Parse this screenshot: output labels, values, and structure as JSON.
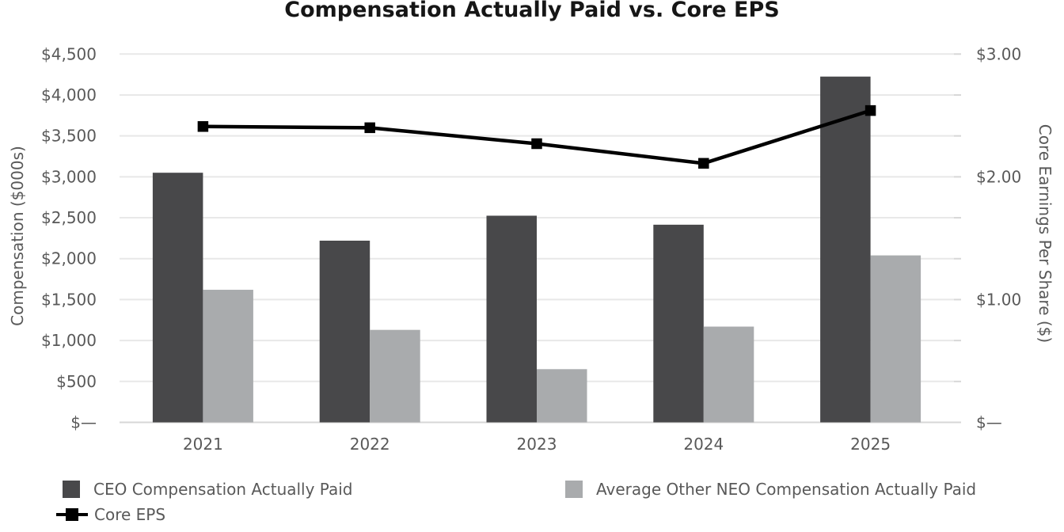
{
  "title": "Compensation Actually Paid vs. Core EPS",
  "colors": {
    "ceo_bar": "#48484a",
    "neo_bar": "#a9abad",
    "eps_line": "#000000",
    "axis_text": "#595959",
    "title_text": "#161616",
    "gridline": "#e8e8e8",
    "baseline": "#d7d7d7"
  },
  "chart_data": {
    "type": "bar",
    "subtype": "grouped bars with overlaid line on secondary axis",
    "title": "Compensation Actually Paid vs. Core EPS",
    "categories": [
      "2021",
      "2022",
      "2023",
      "2024",
      "2025"
    ],
    "series": [
      {
        "name": "CEO Compensation Actually Paid",
        "type": "bar",
        "axis": "left",
        "values": [
          3050,
          2220,
          2525,
          2415,
          4225
        ]
      },
      {
        "name": "Average Other NEO Compensation Actually Paid",
        "type": "bar",
        "axis": "left",
        "values": [
          1620,
          1130,
          650,
          1170,
          2040
        ]
      },
      {
        "name": "Core EPS",
        "type": "line",
        "axis": "right",
        "values": [
          2.41,
          2.4,
          2.27,
          2.11,
          2.54
        ]
      }
    ],
    "left_axis": {
      "title": "Compensation ($000s)",
      "min": 0,
      "max": 4500,
      "step": 500,
      "ticks": [
        "$—",
        "$500",
        "$1,000",
        "$1,500",
        "$2,000",
        "$2,500",
        "$3,000",
        "$3,500",
        "$4,000",
        "$4,500"
      ]
    },
    "right_axis": {
      "title": "Core Earnings Per Share ($)",
      "min": 0,
      "max": 3,
      "ticks": [
        {
          "label": "$—",
          "value": 0
        },
        {
          "label": "$1.00",
          "value": 1
        },
        {
          "label": "$2.00",
          "value": 2
        },
        {
          "label": "$3.00",
          "value": 3
        }
      ]
    },
    "grid": true,
    "legend_position": "bottom"
  },
  "legend": {
    "items": [
      {
        "label": "CEO Compensation Actually Paid",
        "swatch": "ceo_bar",
        "glyph": "square"
      },
      {
        "label": "Average Other NEO Compensation Actually Paid",
        "swatch": "neo_bar",
        "glyph": "square"
      },
      {
        "label": "Core EPS",
        "swatch": "eps_line",
        "glyph": "line-marker"
      }
    ]
  }
}
